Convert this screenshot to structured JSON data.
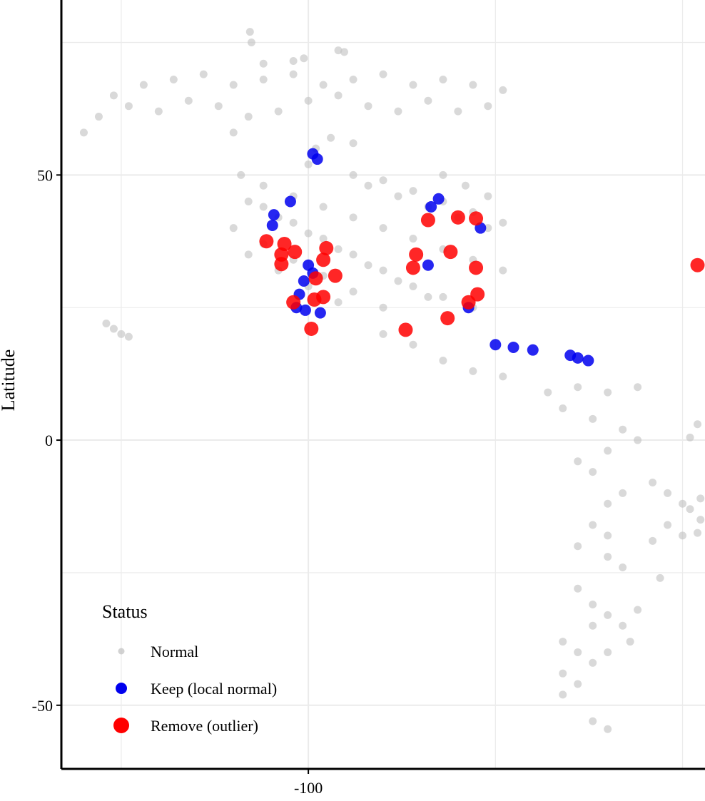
{
  "chart_data": {
    "type": "scatter",
    "title": "",
    "xlabel": "",
    "ylabel": "Latitude",
    "x_ticks": [
      -100
    ],
    "y_ticks": [
      50,
      0,
      -50
    ],
    "xlim": [
      -116.5,
      -73.5
    ],
    "ylim": [
      -62,
      83
    ],
    "grid": true,
    "legend_position": "bottom-left",
    "legend": {
      "title": "Status",
      "entries": [
        {
          "label": "Normal",
          "color": "#bfbfbf"
        },
        {
          "label": "Keep (local normal)",
          "color": "#0000ee"
        },
        {
          "label": "Remove (outlier)",
          "color": "#ff0000"
        }
      ]
    },
    "series": [
      {
        "name": "Normal",
        "color": "#bfbfbf",
        "points": [
          [
            -104.5,
            50
          ],
          [
            -103,
            48
          ],
          [
            -101,
            46
          ],
          [
            -99,
            44
          ],
          [
            -97,
            42
          ],
          [
            -95,
            40
          ],
          [
            -93,
            38
          ],
          [
            -91,
            36
          ],
          [
            -89,
            34
          ],
          [
            -87,
            32
          ],
          [
            -103,
            44
          ],
          [
            -101,
            41
          ],
          [
            -99,
            38
          ],
          [
            -97,
            35
          ],
          [
            -95,
            32
          ],
          [
            -93,
            29
          ],
          [
            -91,
            27
          ],
          [
            -89,
            25
          ],
          [
            -104,
            45
          ],
          [
            -102,
            42
          ],
          [
            -100,
            39
          ],
          [
            -98,
            36
          ],
          [
            -96,
            33
          ],
          [
            -94,
            30
          ],
          [
            -92,
            27
          ],
          [
            -105,
            40
          ],
          [
            -103,
            37
          ],
          [
            -101,
            34
          ],
          [
            -99,
            31
          ],
          [
            -97,
            28
          ],
          [
            -95,
            25
          ],
          [
            -104,
            35
          ],
          [
            -102,
            32
          ],
          [
            -100,
            29
          ],
          [
            -98,
            26
          ],
          [
            -96,
            48
          ],
          [
            -94,
            46
          ],
          [
            -92,
            44
          ],
          [
            -90,
            42
          ],
          [
            -88,
            40
          ],
          [
            -97,
            50
          ],
          [
            -95,
            49
          ],
          [
            -93,
            47
          ],
          [
            -91,
            45
          ],
          [
            -89,
            43
          ],
          [
            -87,
            41
          ],
          [
            -88,
            46
          ],
          [
            -89.5,
            48
          ],
          [
            -91,
            50
          ],
          [
            -100,
            52
          ],
          [
            -99.5,
            55
          ],
          [
            -98.5,
            57
          ],
          [
            -97,
            56
          ],
          [
            -95,
            20
          ],
          [
            -93,
            18
          ],
          [
            -91,
            15
          ],
          [
            -89,
            13
          ],
          [
            -87,
            12
          ],
          [
            -83,
            6
          ],
          [
            -81,
            4
          ],
          [
            -79,
            2
          ],
          [
            -78,
            0
          ],
          [
            -80,
            -2
          ],
          [
            -82,
            -4
          ],
          [
            -81,
            -6
          ],
          [
            -77,
            -8
          ],
          [
            -76,
            -10
          ],
          [
            -75,
            -12
          ],
          [
            -79,
            -10
          ],
          [
            -80,
            -12
          ],
          [
            -84,
            9
          ],
          [
            -82,
            10
          ],
          [
            -80,
            9
          ],
          [
            -78,
            10
          ],
          [
            -81,
            -16
          ],
          [
            -80,
            -18
          ],
          [
            -82,
            -20
          ],
          [
            -80,
            -22
          ],
          [
            -79,
            -24
          ],
          [
            -76,
            -16
          ],
          [
            -75,
            -18
          ],
          [
            -77,
            -19
          ],
          [
            -73.8,
            -11
          ],
          [
            -74.5,
            -13
          ],
          [
            -82,
            -28
          ],
          [
            -81,
            -31
          ],
          [
            -80,
            -33
          ],
          [
            -81,
            -35
          ],
          [
            -83,
            -38
          ],
          [
            -82,
            -40
          ],
          [
            -81,
            -42
          ],
          [
            -78,
            -32
          ],
          [
            -79,
            -35
          ],
          [
            -78.5,
            -38
          ],
          [
            -80,
            -40
          ],
          [
            -83,
            -44
          ],
          [
            -82,
            -46
          ],
          [
            -83,
            -48
          ],
          [
            -81,
            -53
          ],
          [
            -80,
            -54.5
          ],
          [
            -113,
            65
          ],
          [
            -112,
            63
          ],
          [
            -110,
            62
          ],
          [
            -108,
            64
          ],
          [
            -106,
            63
          ],
          [
            -104,
            61
          ],
          [
            -102,
            62
          ],
          [
            -100,
            64
          ],
          [
            -98,
            65
          ],
          [
            -96,
            63
          ],
          [
            -94,
            62
          ],
          [
            -92,
            64
          ],
          [
            -90,
            62
          ],
          [
            -88,
            63
          ],
          [
            -111,
            67
          ],
          [
            -109,
            68
          ],
          [
            -107,
            69
          ],
          [
            -105,
            67
          ],
          [
            -103,
            68
          ],
          [
            -101,
            69
          ],
          [
            -99,
            67
          ],
          [
            -97,
            68
          ],
          [
            -95,
            69
          ],
          [
            -93,
            67
          ],
          [
            -91,
            68
          ],
          [
            -89,
            67
          ],
          [
            -87,
            66
          ],
          [
            -114,
            61
          ],
          [
            -115,
            58
          ],
          [
            -105,
            58
          ],
          [
            -103,
            71
          ],
          [
            -101,
            71.5
          ],
          [
            -100.3,
            72
          ],
          [
            -103.8,
            75
          ],
          [
            -103.9,
            77
          ],
          [
            -98,
            73.5
          ],
          [
            -97.6,
            73.2
          ],
          [
            -113.5,
            22
          ],
          [
            -113,
            21
          ],
          [
            -112.5,
            20
          ],
          [
            -112,
            19.5
          ],
          [
            -74,
            -17.5
          ],
          [
            -73.8,
            -15
          ],
          [
            -76.5,
            -26
          ],
          [
            -74.5,
            0.5
          ],
          [
            -74,
            3
          ]
        ]
      },
      {
        "name": "Keep (local normal)",
        "color": "#0000ee",
        "points": [
          [
            -99.7,
            54
          ],
          [
            -99.4,
            53
          ],
          [
            -101.2,
            45
          ],
          [
            -102.3,
            42.5
          ],
          [
            -102.4,
            40.5
          ],
          [
            -100,
            33
          ],
          [
            -99.7,
            31.5
          ],
          [
            -100.3,
            30
          ],
          [
            -100.6,
            27.5
          ],
          [
            -100.8,
            25
          ],
          [
            -100.2,
            24.5
          ],
          [
            -99.2,
            24
          ],
          [
            -91.3,
            45.5
          ],
          [
            -91.8,
            44
          ],
          [
            -88.5,
            40
          ],
          [
            -92,
            33
          ],
          [
            -89.3,
            25
          ],
          [
            -87.5,
            18
          ],
          [
            -86.3,
            17.5
          ],
          [
            -85,
            17
          ],
          [
            -82.5,
            16
          ],
          [
            -82,
            15.5
          ],
          [
            -81.3,
            15
          ]
        ]
      },
      {
        "name": "Remove (outlier)",
        "color": "#ff0000",
        "points": [
          [
            -102.8,
            37.5
          ],
          [
            -101.6,
            37
          ],
          [
            -101.8,
            35
          ],
          [
            -100.9,
            35.5
          ],
          [
            -99,
            34
          ],
          [
            -98.2,
            31
          ],
          [
            -99.5,
            30.5
          ],
          [
            -99,
            27
          ],
          [
            -99.6,
            26.5
          ],
          [
            -101,
            26
          ],
          [
            -99.8,
            21
          ],
          [
            -92.8,
            35
          ],
          [
            -90.5,
            35.5
          ],
          [
            -93,
            32.5
          ],
          [
            -92,
            41.5
          ],
          [
            -89.3,
            26
          ],
          [
            -101.8,
            33.2
          ],
          [
            -88.8,
            41.8
          ],
          [
            -90,
            42
          ],
          [
            -88.7,
            27.5
          ],
          [
            -98.8,
            36.2
          ],
          [
            -90.7,
            23
          ],
          [
            -93.5,
            20.8
          ],
          [
            -88.8,
            32.5
          ],
          [
            -74,
            33
          ]
        ]
      }
    ]
  }
}
